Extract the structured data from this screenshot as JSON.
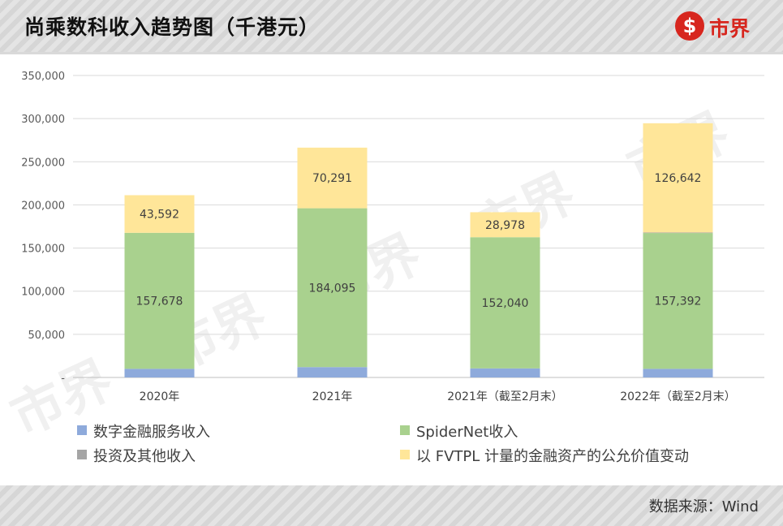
{
  "header": {
    "title": "尚乘数科收入趋势图（千港元）",
    "logo_mark": "$",
    "logo_text": "市界"
  },
  "footer": {
    "source": "数据来源：Wind"
  },
  "watermark": "市界",
  "colors": {
    "digital_finance": "#8eaadb",
    "spidernet": "#a9d18e",
    "investment_other": "#a5a5a5",
    "fvtpl": "#ffe699"
  },
  "chart_data": {
    "type": "bar",
    "stacked": true,
    "categories": [
      "2020年",
      "2021年",
      "2021年（截至2月末）",
      "2022年（截至2月末）"
    ],
    "series": [
      {
        "name": "数字金融服务收入",
        "values": [
          10000,
          12000,
          10500,
          10000
        ],
        "color": "#8eaadb",
        "show_labels": false
      },
      {
        "name": "SpiderNet收入",
        "values": [
          157678,
          184095,
          152040,
          157392
        ],
        "color": "#a9d18e",
        "show_labels": true
      },
      {
        "name": "投资及其他收入",
        "values": [
          0,
          0,
          0,
          600
        ],
        "color": "#a5a5a5",
        "show_labels": false
      },
      {
        "name": "以 FVTPL 计量的金融资产的公允价值变动",
        "values": [
          43592,
          70291,
          28978,
          126642
        ],
        "color": "#ffe699",
        "show_labels": true
      }
    ],
    "y_ticks": [
      "-",
      "50,000",
      "100,000",
      "150,000",
      "200,000",
      "250,000",
      "300,000",
      "350,000"
    ],
    "ylim": [
      0,
      350000
    ],
    "grid": true,
    "legend_position": "bottom"
  }
}
